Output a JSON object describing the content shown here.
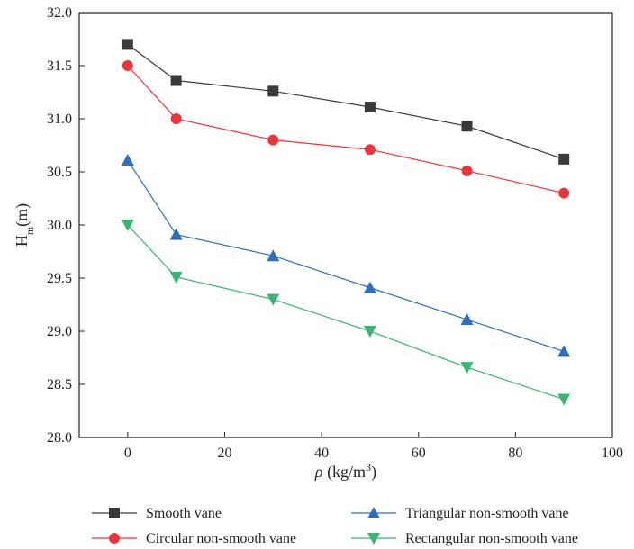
{
  "chart_data": {
    "type": "line",
    "title": "",
    "xlabel": "ρ (kg/m³)",
    "xlabel_parts": {
      "symbol": "ρ",
      "unit": " (kg/m",
      "sup": "3",
      "close": ")"
    },
    "ylabel": "Hm(m)",
    "ylabel_parts": {
      "main": "H",
      "sub": "m",
      "unit": "(m)"
    },
    "xlim": [
      -10,
      100
    ],
    "ylim": [
      28.0,
      32.0
    ],
    "xticks": [
      0,
      20,
      40,
      60,
      80,
      100
    ],
    "yticks": [
      28.0,
      28.5,
      29.0,
      29.5,
      30.0,
      30.5,
      31.0,
      31.5,
      32.0
    ],
    "x": [
      0,
      10,
      30,
      50,
      70,
      90
    ],
    "grid": false,
    "legend_position": "bottom",
    "series": [
      {
        "name": "Smooth vane",
        "marker": "square",
        "color": "#3a3a3a",
        "values": [
          31.7,
          31.36,
          31.26,
          31.11,
          30.93,
          30.62
        ]
      },
      {
        "name": "Circular non-smooth vane",
        "marker": "circle",
        "color": "#e8373c",
        "values": [
          31.5,
          31.0,
          30.8,
          30.71,
          30.51,
          30.3
        ]
      },
      {
        "name": "Triangular non-smooth vane",
        "marker": "triangle-up",
        "color": "#2d6fba",
        "values": [
          30.61,
          29.91,
          29.71,
          29.41,
          29.11,
          28.81
        ]
      },
      {
        "name": "Rectangular non-smooth vane",
        "marker": "triangle-down",
        "color": "#3cb371",
        "values": [
          30.0,
          29.51,
          29.3,
          29.0,
          28.66,
          28.36
        ]
      }
    ]
  }
}
